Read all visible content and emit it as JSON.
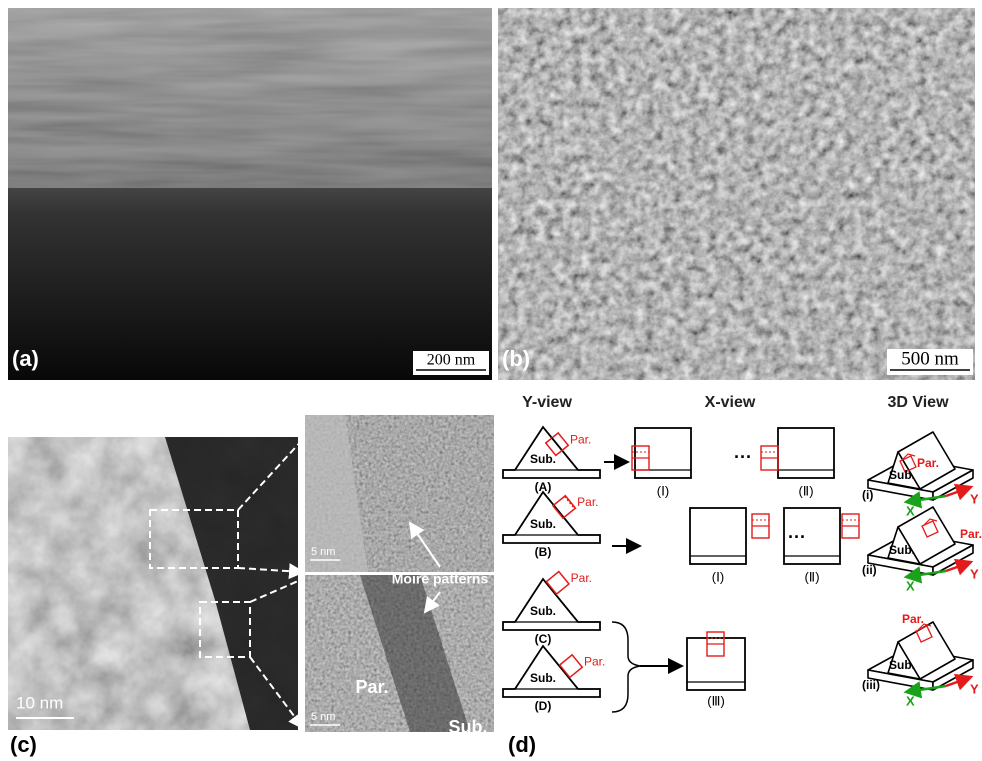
{
  "panels": {
    "a": {
      "label": "(a)",
      "scale_bar": "200 nm"
    },
    "b": {
      "label": "(b)",
      "scale_bar": "500 nm"
    },
    "c": {
      "label": "(c)",
      "scale_bar": "10 nm",
      "inset_scale_bars": [
        "5 nm",
        "5 nm"
      ],
      "annotation": "Moiré patterns",
      "particle": "Par.",
      "substrate": "Sub."
    },
    "d": {
      "label": "(d)",
      "headers": [
        "Y-view",
        "X-view",
        "3D View"
      ],
      "y_views": [
        {
          "label": "(A)",
          "particle": "Par.",
          "substrate": "Sub."
        },
        {
          "label": "(B)",
          "particle": "Par.",
          "substrate": "Sub."
        },
        {
          "label": "(C)",
          "particle": "Par.",
          "substrate": "Sub."
        },
        {
          "label": "(D)",
          "particle": "Par.",
          "substrate": "Sub."
        }
      ],
      "x_views": [
        "(Ⅰ)",
        "(Ⅱ)",
        "(Ⅰ)",
        "(Ⅱ)",
        "(Ⅲ)"
      ],
      "ellipses": [
        "···",
        "···"
      ],
      "views_3d": [
        {
          "label": "(i)",
          "particle": "Par.",
          "substrate": "Sub.",
          "x_axis": "X",
          "y_axis": "Y"
        },
        {
          "label": "(ii)",
          "particle": "Par.",
          "substrate": "Sub.",
          "x_axis": "X",
          "y_axis": "Y"
        },
        {
          "label": "(iii)",
          "particle": "Par.",
          "substrate": "Sub.",
          "x_axis": "X",
          "y_axis": "Y"
        }
      ]
    }
  }
}
